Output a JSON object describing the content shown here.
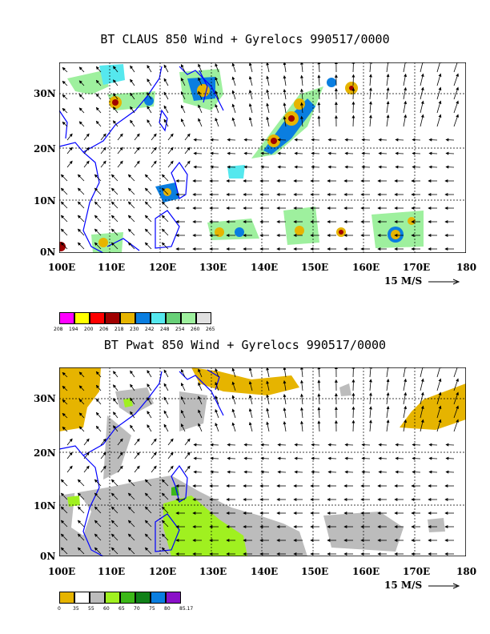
{
  "panels": [
    {
      "title": "BT CLAUS 850 Wind + Gyrelocs 990517/0000",
      "y_labels": [
        "30N",
        "20N",
        "10N",
        "0N"
      ],
      "x_labels": [
        "100E",
        "110E",
        "120E",
        "130E",
        "140E",
        "150E",
        "160E",
        "170E",
        "180"
      ],
      "scale_label": "15 M/S",
      "legend": {
        "colors": [
          "#ff00ff",
          "#ffff00",
          "#ff0000",
          "#a00000",
          "#e6b400",
          "#0a7ee0",
          "#55e8ee",
          "#68d078",
          "#9ef09e",
          "#e0e0e0"
        ],
        "labels": [
          "208",
          "194",
          "200",
          "206",
          "218",
          "230",
          "242",
          "248",
          "254",
          "260",
          "265"
        ]
      }
    },
    {
      "title": "BT Pwat 850 Wind + Gyrelocs 990517/0000",
      "y_labels": [
        "30N",
        "20N",
        "10N",
        "0N"
      ],
      "x_labels": [
        "100E",
        "110E",
        "120E",
        "130E",
        "140E",
        "150E",
        "160E",
        "170E",
        "180"
      ],
      "scale_label": "15 M/S",
      "legend": {
        "colors": [
          "#e6b400",
          "#ffffff",
          "#bcbcbc",
          "#a0f020",
          "#3cb818",
          "#108018",
          "#0a7ee0",
          "#8a10c8"
        ],
        "labels": [
          "0",
          "35",
          "55",
          "60",
          "65",
          "70",
          "75",
          "80",
          "85.17"
        ]
      }
    }
  ]
}
